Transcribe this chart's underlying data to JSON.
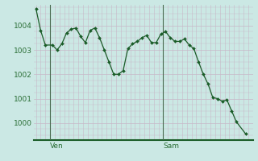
{
  "background_color": "#cbe8e4",
  "grid_color_v": "#c8b8c8",
  "grid_color_h": "#c8b8c8",
  "line_color": "#1a5c28",
  "marker_color": "#1a5c28",
  "ylim": [
    999.3,
    1004.85
  ],
  "yticks": [
    1000,
    1001,
    1002,
    1003,
    1004
  ],
  "xlim_left": -3.5,
  "xlim_right": 43.0,
  "ven_x": 0.0,
  "sam_x": 24.0,
  "x_values": [
    -3.0,
    -2.0,
    -1.0,
    0.5,
    1.5,
    2.5,
    3.5,
    4.5,
    5.5,
    6.5,
    7.5,
    8.5,
    9.5,
    10.5,
    11.5,
    12.5,
    13.5,
    14.5,
    15.5,
    16.5,
    17.5,
    18.5,
    19.5,
    20.5,
    21.5,
    22.5,
    23.5,
    24.5,
    25.5,
    26.5,
    27.5,
    28.5,
    29.5,
    30.5,
    31.5,
    32.5,
    33.5,
    34.5,
    35.5,
    36.5,
    37.5,
    38.5,
    39.5,
    41.5
  ],
  "y_values": [
    1004.7,
    1003.8,
    1003.2,
    1003.2,
    1003.0,
    1003.25,
    1003.7,
    1003.85,
    1003.9,
    1003.55,
    1003.3,
    1003.8,
    1003.9,
    1003.5,
    1003.0,
    1002.5,
    1002.0,
    1002.0,
    1002.15,
    1003.05,
    1003.25,
    1003.35,
    1003.5,
    1003.6,
    1003.3,
    1003.3,
    1003.65,
    1003.75,
    1003.5,
    1003.35,
    1003.35,
    1003.45,
    1003.2,
    1003.05,
    1002.5,
    1002.0,
    1001.6,
    1001.05,
    1001.0,
    1000.9,
    1000.95,
    1000.5,
    1000.05,
    999.55
  ],
  "bottom_color": "#1a5c28",
  "label_color": "#2a6e35",
  "tick_label_fontsize": 6.5
}
